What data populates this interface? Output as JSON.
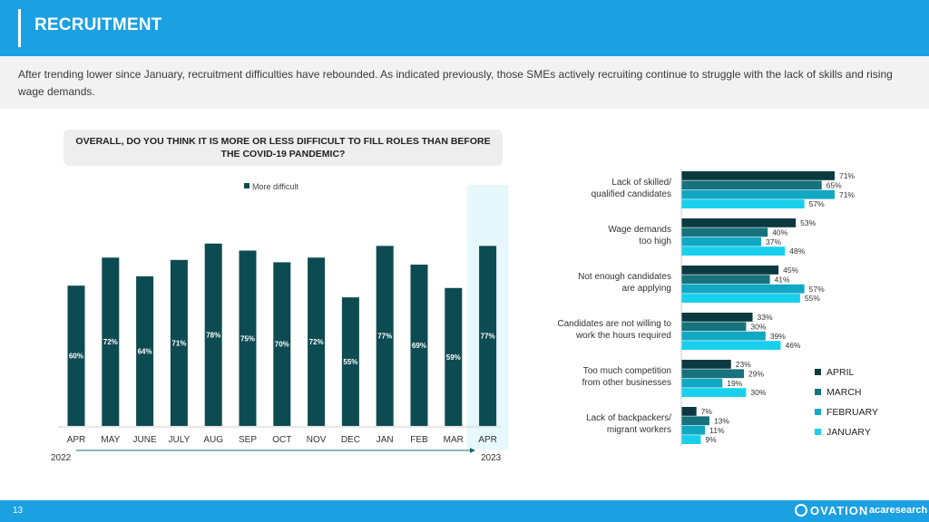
{
  "header": {
    "title": "RECRUITMENT"
  },
  "intro": {
    "text": "After trending lower since January, recruitment difficulties have rebounded.  As indicated previously, those SMEs actively recruiting continue to struggle with the  lack of skills and rising wage demands."
  },
  "question": {
    "line1": "OVERALL, DO YOU THINK IT IS MORE OR LESS DIFFICULT TO FILL ROLES THAN BEFORE",
    "line2": "THE COVID-19 PANDEMIC?"
  },
  "footer": {
    "page_number": "13",
    "logo_ovation": "OVATION",
    "logo_aca": "acaresearch"
  },
  "colors": {
    "header": "#1ba1e2",
    "dark_teal": "#0d4b52",
    "april": "#0a3a40",
    "march": "#16727c",
    "february": "#11a8c4",
    "january": "#19d0ec",
    "highlight": "#e6f8fc"
  },
  "chart_data": [
    {
      "type": "bar",
      "legend": [
        "More difficult"
      ],
      "categories": [
        "APR",
        "MAY",
        "JUNE",
        "JULY",
        "AUG",
        "SEP",
        "OCT",
        "NOV",
        "DEC",
        "JAN",
        "FEB",
        "MAR",
        "APR"
      ],
      "values": [
        60,
        72,
        64,
        71,
        78,
        75,
        70,
        72,
        55,
        77,
        69,
        59,
        77
      ],
      "data_labels": [
        "60%",
        "72%",
        "64%",
        "71%",
        "78%",
        "75%",
        "70%",
        "72%",
        "55%",
        "77%",
        "69%",
        "59%",
        "77%"
      ],
      "year_start": "2022",
      "year_end": "2023",
      "ylim": [
        0,
        100
      ],
      "highlighted_category_index": 12
    },
    {
      "type": "bar",
      "orientation": "horizontal",
      "categories": [
        [
          "Lack of skilled/",
          "qualified candidates"
        ],
        [
          "Wage demands",
          "too high"
        ],
        [
          "Not enough candidates",
          "are applying"
        ],
        [
          "Candidates are not willing to",
          "work the hours required"
        ],
        [
          "Too much competition",
          "from other businesses"
        ],
        [
          "Lack of backpackers/",
          "migrant workers"
        ]
      ],
      "series": [
        {
          "name": "APRIL",
          "values": [
            71,
            53,
            45,
            33,
            23,
            7
          ],
          "labels": [
            "71%",
            "53%",
            "45%",
            "33%",
            "23%",
            "7%"
          ]
        },
        {
          "name": "MARCH",
          "values": [
            65,
            40,
            41,
            30,
            29,
            13
          ],
          "labels": [
            "65%",
            "40%",
            "41%",
            "30%",
            "29%",
            "13%"
          ]
        },
        {
          "name": "FEBRUARY",
          "values": [
            71,
            37,
            57,
            39,
            19,
            11
          ],
          "labels": [
            "71%",
            "37%",
            "57%",
            "39%",
            "19%",
            "11%"
          ]
        },
        {
          "name": "JANUARY",
          "values": [
            57,
            48,
            55,
            46,
            30,
            9
          ],
          "labels": [
            "57%",
            "48%",
            "55%",
            "46%",
            "30%",
            "9%"
          ]
        }
      ],
      "legend_position": "bottom-right"
    }
  ]
}
